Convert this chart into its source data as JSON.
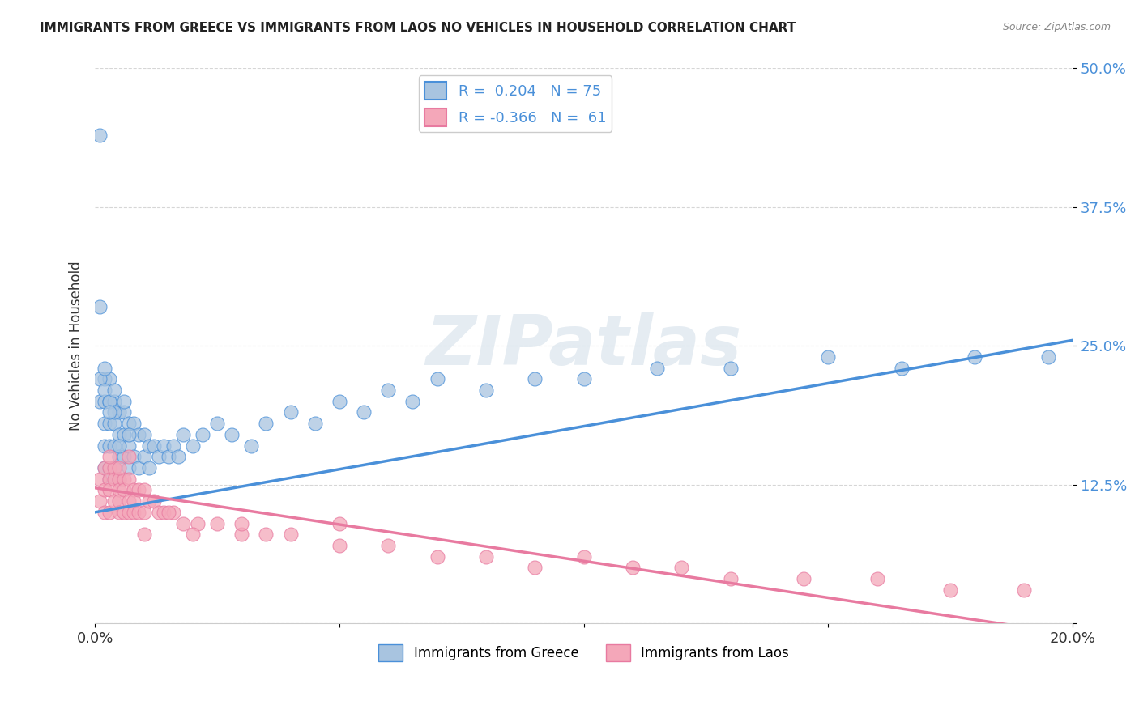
{
  "title": "IMMIGRANTS FROM GREECE VS IMMIGRANTS FROM LAOS NO VEHICLES IN HOUSEHOLD CORRELATION CHART",
  "source": "Source: ZipAtlas.com",
  "ylabel": "No Vehicles in Household",
  "xlim": [
    0.0,
    0.2
  ],
  "ylim": [
    0.0,
    0.5
  ],
  "yticks": [
    0.0,
    0.125,
    0.25,
    0.375,
    0.5
  ],
  "ytick_labels": [
    "",
    "12.5%",
    "25.0%",
    "37.5%",
    "50.0%"
  ],
  "xticks": [
    0.0,
    0.05,
    0.1,
    0.15,
    0.2
  ],
  "xtick_labels": [
    "0.0%",
    "",
    "",
    "",
    "20.0%"
  ],
  "greece_R": 0.204,
  "greece_N": 75,
  "laos_R": -0.366,
  "laos_N": 61,
  "greece_color": "#a8c4e0",
  "laos_color": "#f4a7b9",
  "greece_line_color": "#4a90d9",
  "laos_line_color": "#e87aa0",
  "watermark": "ZIPatlas",
  "background_color": "#ffffff",
  "greece_line_x0": 0.0,
  "greece_line_y0": 0.1,
  "greece_line_x1": 0.2,
  "greece_line_y1": 0.255,
  "laos_line_x0": 0.0,
  "laos_line_y0": 0.122,
  "laos_line_x1": 0.2,
  "laos_line_y1": -0.01,
  "greece_x": [
    0.001,
    0.001,
    0.001,
    0.002,
    0.002,
    0.002,
    0.002,
    0.002,
    0.003,
    0.003,
    0.003,
    0.003,
    0.003,
    0.003,
    0.004,
    0.004,
    0.004,
    0.004,
    0.005,
    0.005,
    0.005,
    0.005,
    0.006,
    0.006,
    0.006,
    0.007,
    0.007,
    0.007,
    0.008,
    0.008,
    0.009,
    0.009,
    0.01,
    0.01,
    0.011,
    0.011,
    0.012,
    0.013,
    0.014,
    0.015,
    0.016,
    0.017,
    0.018,
    0.02,
    0.022,
    0.025,
    0.028,
    0.032,
    0.035,
    0.04,
    0.045,
    0.05,
    0.055,
    0.06,
    0.065,
    0.07,
    0.08,
    0.09,
    0.1,
    0.115,
    0.13,
    0.15,
    0.165,
    0.18,
    0.195,
    0.001,
    0.002,
    0.003,
    0.004,
    0.002,
    0.003,
    0.004,
    0.005,
    0.006,
    0.007
  ],
  "greece_y": [
    0.44,
    0.285,
    0.2,
    0.22,
    0.2,
    0.18,
    0.16,
    0.14,
    0.22,
    0.2,
    0.18,
    0.16,
    0.14,
    0.13,
    0.2,
    0.18,
    0.16,
    0.14,
    0.19,
    0.17,
    0.15,
    0.13,
    0.19,
    0.17,
    0.15,
    0.18,
    0.16,
    0.14,
    0.18,
    0.15,
    0.17,
    0.14,
    0.17,
    0.15,
    0.16,
    0.14,
    0.16,
    0.15,
    0.16,
    0.15,
    0.16,
    0.15,
    0.17,
    0.16,
    0.17,
    0.18,
    0.17,
    0.16,
    0.18,
    0.19,
    0.18,
    0.2,
    0.19,
    0.21,
    0.2,
    0.22,
    0.21,
    0.22,
    0.22,
    0.23,
    0.23,
    0.24,
    0.23,
    0.24,
    0.24,
    0.22,
    0.21,
    0.2,
    0.19,
    0.23,
    0.19,
    0.21,
    0.16,
    0.2,
    0.17
  ],
  "laos_x": [
    0.001,
    0.001,
    0.002,
    0.002,
    0.002,
    0.003,
    0.003,
    0.003,
    0.003,
    0.004,
    0.004,
    0.004,
    0.005,
    0.005,
    0.005,
    0.005,
    0.006,
    0.006,
    0.006,
    0.007,
    0.007,
    0.007,
    0.008,
    0.008,
    0.008,
    0.009,
    0.009,
    0.01,
    0.01,
    0.011,
    0.012,
    0.013,
    0.014,
    0.016,
    0.018,
    0.021,
    0.025,
    0.03,
    0.035,
    0.04,
    0.05,
    0.06,
    0.07,
    0.08,
    0.09,
    0.1,
    0.11,
    0.12,
    0.13,
    0.145,
    0.16,
    0.175,
    0.19,
    0.003,
    0.005,
    0.007,
    0.01,
    0.015,
    0.02,
    0.03,
    0.05
  ],
  "laos_y": [
    0.13,
    0.11,
    0.14,
    0.12,
    0.1,
    0.14,
    0.13,
    0.12,
    0.1,
    0.14,
    0.13,
    0.11,
    0.13,
    0.12,
    0.11,
    0.1,
    0.13,
    0.12,
    0.1,
    0.13,
    0.11,
    0.1,
    0.12,
    0.11,
    0.1,
    0.12,
    0.1,
    0.12,
    0.1,
    0.11,
    0.11,
    0.1,
    0.1,
    0.1,
    0.09,
    0.09,
    0.09,
    0.08,
    0.08,
    0.08,
    0.07,
    0.07,
    0.06,
    0.06,
    0.05,
    0.06,
    0.05,
    0.05,
    0.04,
    0.04,
    0.04,
    0.03,
    0.03,
    0.15,
    0.14,
    0.15,
    0.08,
    0.1,
    0.08,
    0.09,
    0.09
  ]
}
